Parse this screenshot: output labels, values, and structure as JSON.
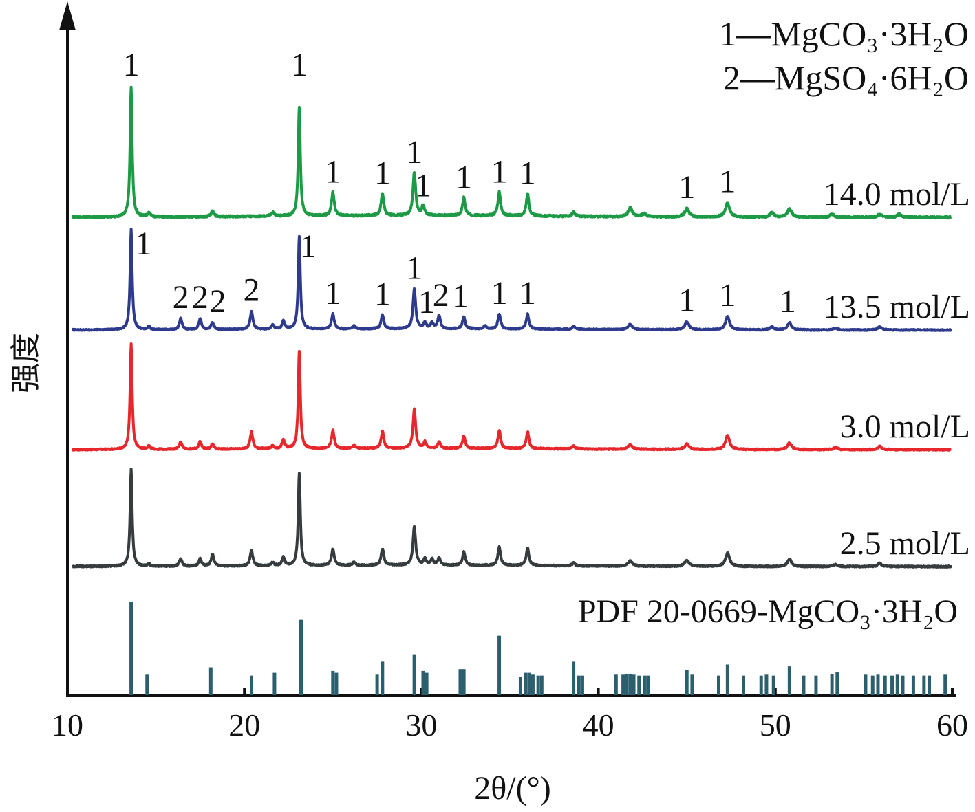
{
  "chart_data": {
    "type": "line",
    "xlabel": "2θ/(°)",
    "ylabel": "强度",
    "xlim": [
      10,
      60
    ],
    "x_ticks": [
      10,
      20,
      30,
      40,
      50,
      60
    ],
    "grid": false,
    "legend": {
      "placement": "top-right",
      "entries": [
        "1—MgCO₃·3H₂O",
        "2—MgSO₄·6H₂O"
      ]
    },
    "series": [
      {
        "name": "14.0 mol/L",
        "color": "#1d9a46",
        "peaks": [
          {
            "x": 13.6,
            "h": 0.93
          },
          {
            "x": 14.6,
            "h": 0.03
          },
          {
            "x": 18.2,
            "h": 0.04
          },
          {
            "x": 21.6,
            "h": 0.03
          },
          {
            "x": 23.1,
            "h": 0.78
          },
          {
            "x": 25.0,
            "h": 0.17
          },
          {
            "x": 27.8,
            "h": 0.16
          },
          {
            "x": 29.6,
            "h": 0.31
          },
          {
            "x": 30.1,
            "h": 0.07
          },
          {
            "x": 32.4,
            "h": 0.13
          },
          {
            "x": 34.4,
            "h": 0.17
          },
          {
            "x": 36.0,
            "h": 0.16
          },
          {
            "x": 38.6,
            "h": 0.03
          },
          {
            "x": 41.8,
            "h": 0.06
          },
          {
            "x": 42.6,
            "h": 0.02
          },
          {
            "x": 45.0,
            "h": 0.06
          },
          {
            "x": 47.3,
            "h": 0.1
          },
          {
            "x": 49.8,
            "h": 0.03
          },
          {
            "x": 50.8,
            "h": 0.06
          },
          {
            "x": 53.2,
            "h": 0.02
          },
          {
            "x": 55.9,
            "h": 0.02
          },
          {
            "x": 57.0,
            "h": 0.02
          }
        ],
        "peak_labels": [
          {
            "x": 13.6,
            "text": "1"
          },
          {
            "x": 23.1,
            "text": "1"
          },
          {
            "x": 25.0,
            "text": "1"
          },
          {
            "x": 27.8,
            "text": "1"
          },
          {
            "x": 29.6,
            "text": "1"
          },
          {
            "x": 30.1,
            "text": "1"
          },
          {
            "x": 32.4,
            "text": "1"
          },
          {
            "x": 34.4,
            "text": "1"
          },
          {
            "x": 36.0,
            "text": "1"
          },
          {
            "x": 45.0,
            "text": "1"
          },
          {
            "x": 47.3,
            "text": "1"
          }
        ]
      },
      {
        "name": "13.5 mol/L",
        "color": "#2e3a8c",
        "peaks": [
          {
            "x": 13.6,
            "h": 1.0
          },
          {
            "x": 14.6,
            "h": 0.03
          },
          {
            "x": 16.4,
            "h": 0.11
          },
          {
            "x": 17.5,
            "h": 0.11
          },
          {
            "x": 18.2,
            "h": 0.07
          },
          {
            "x": 20.4,
            "h": 0.18
          },
          {
            "x": 21.6,
            "h": 0.04
          },
          {
            "x": 22.2,
            "h": 0.08
          },
          {
            "x": 23.1,
            "h": 0.92
          },
          {
            "x": 25.0,
            "h": 0.15
          },
          {
            "x": 26.2,
            "h": 0.03
          },
          {
            "x": 27.8,
            "h": 0.14
          },
          {
            "x": 29.6,
            "h": 0.4
          },
          {
            "x": 30.2,
            "h": 0.06
          },
          {
            "x": 30.6,
            "h": 0.06
          },
          {
            "x": 31.0,
            "h": 0.13
          },
          {
            "x": 32.4,
            "h": 0.12
          },
          {
            "x": 33.6,
            "h": 0.03
          },
          {
            "x": 34.4,
            "h": 0.15
          },
          {
            "x": 36.0,
            "h": 0.15
          },
          {
            "x": 38.6,
            "h": 0.03
          },
          {
            "x": 41.8,
            "h": 0.05
          },
          {
            "x": 45.0,
            "h": 0.08
          },
          {
            "x": 47.3,
            "h": 0.13
          },
          {
            "x": 49.8,
            "h": 0.03
          },
          {
            "x": 50.8,
            "h": 0.07
          },
          {
            "x": 53.4,
            "h": 0.02
          },
          {
            "x": 55.9,
            "h": 0.03
          }
        ],
        "peak_labels": [
          {
            "x": 14.3,
            "text": "1"
          },
          {
            "x": 16.4,
            "text": "2"
          },
          {
            "x": 17.5,
            "text": "2"
          },
          {
            "x": 18.5,
            "text": "2"
          },
          {
            "x": 20.4,
            "text": "2"
          },
          {
            "x": 23.6,
            "text": "1"
          },
          {
            "x": 25.0,
            "text": "1"
          },
          {
            "x": 27.8,
            "text": "1"
          },
          {
            "x": 29.6,
            "text": "1"
          },
          {
            "x": 30.3,
            "text": "1"
          },
          {
            "x": 31.1,
            "text": "2"
          },
          {
            "x": 32.2,
            "text": "1"
          },
          {
            "x": 34.4,
            "text": "1"
          },
          {
            "x": 36.0,
            "text": "1"
          },
          {
            "x": 45.0,
            "text": "1"
          },
          {
            "x": 47.3,
            "text": "1"
          },
          {
            "x": 50.7,
            "text": "1"
          }
        ]
      },
      {
        "name": "3.0 mol/L",
        "color": "#e6282c",
        "peaks": [
          {
            "x": 13.6,
            "h": 1.0
          },
          {
            "x": 14.6,
            "h": 0.03
          },
          {
            "x": 16.4,
            "h": 0.07
          },
          {
            "x": 17.5,
            "h": 0.07
          },
          {
            "x": 18.2,
            "h": 0.05
          },
          {
            "x": 20.4,
            "h": 0.16
          },
          {
            "x": 21.6,
            "h": 0.03
          },
          {
            "x": 22.2,
            "h": 0.08
          },
          {
            "x": 23.1,
            "h": 0.92
          },
          {
            "x": 25.0,
            "h": 0.17
          },
          {
            "x": 26.2,
            "h": 0.03
          },
          {
            "x": 27.8,
            "h": 0.16
          },
          {
            "x": 29.6,
            "h": 0.37
          },
          {
            "x": 30.2,
            "h": 0.06
          },
          {
            "x": 31.0,
            "h": 0.06
          },
          {
            "x": 32.4,
            "h": 0.12
          },
          {
            "x": 34.4,
            "h": 0.17
          },
          {
            "x": 36.0,
            "h": 0.16
          },
          {
            "x": 38.6,
            "h": 0.03
          },
          {
            "x": 41.8,
            "h": 0.04
          },
          {
            "x": 45.0,
            "h": 0.05
          },
          {
            "x": 47.3,
            "h": 0.13
          },
          {
            "x": 50.8,
            "h": 0.06
          },
          {
            "x": 53.4,
            "h": 0.02
          },
          {
            "x": 55.9,
            "h": 0.03
          }
        ],
        "peak_labels": []
      },
      {
        "name": "2.5 mol/L",
        "color": "#363b3d",
        "peaks": [
          {
            "x": 13.6,
            "h": 0.94
          },
          {
            "x": 14.6,
            "h": 0.02
          },
          {
            "x": 16.4,
            "h": 0.07
          },
          {
            "x": 17.5,
            "h": 0.07
          },
          {
            "x": 18.2,
            "h": 0.11
          },
          {
            "x": 20.4,
            "h": 0.15
          },
          {
            "x": 21.6,
            "h": 0.03
          },
          {
            "x": 22.2,
            "h": 0.08
          },
          {
            "x": 23.1,
            "h": 0.9
          },
          {
            "x": 25.0,
            "h": 0.16
          },
          {
            "x": 26.2,
            "h": 0.03
          },
          {
            "x": 27.8,
            "h": 0.16
          },
          {
            "x": 29.6,
            "h": 0.38
          },
          {
            "x": 30.2,
            "h": 0.06
          },
          {
            "x": 30.6,
            "h": 0.06
          },
          {
            "x": 31.0,
            "h": 0.07
          },
          {
            "x": 32.4,
            "h": 0.13
          },
          {
            "x": 34.4,
            "h": 0.18
          },
          {
            "x": 36.0,
            "h": 0.17
          },
          {
            "x": 38.6,
            "h": 0.03
          },
          {
            "x": 41.8,
            "h": 0.05
          },
          {
            "x": 45.0,
            "h": 0.06
          },
          {
            "x": 47.3,
            "h": 0.13
          },
          {
            "x": 50.8,
            "h": 0.07
          },
          {
            "x": 53.4,
            "h": 0.02
          },
          {
            "x": 55.9,
            "h": 0.03
          }
        ],
        "peak_labels": []
      }
    ],
    "reference": {
      "name": "PDF 20-0669-MgCO₃·3H₂O",
      "color": "#2c5f6e",
      "lines": [
        {
          "x": 13.6,
          "h": 1.0
        },
        {
          "x": 14.5,
          "h": 0.22
        },
        {
          "x": 18.1,
          "h": 0.3
        },
        {
          "x": 20.4,
          "h": 0.21
        },
        {
          "x": 21.7,
          "h": 0.24
        },
        {
          "x": 23.2,
          "h": 0.81
        },
        {
          "x": 25.0,
          "h": 0.26
        },
        {
          "x": 25.2,
          "h": 0.24
        },
        {
          "x": 27.5,
          "h": 0.22
        },
        {
          "x": 27.8,
          "h": 0.36
        },
        {
          "x": 29.6,
          "h": 0.44
        },
        {
          "x": 30.1,
          "h": 0.26
        },
        {
          "x": 30.3,
          "h": 0.24
        },
        {
          "x": 32.2,
          "h": 0.28
        },
        {
          "x": 32.4,
          "h": 0.28
        },
        {
          "x": 34.4,
          "h": 0.64
        },
        {
          "x": 35.6,
          "h": 0.2
        },
        {
          "x": 35.9,
          "h": 0.24
        },
        {
          "x": 36.1,
          "h": 0.24
        },
        {
          "x": 36.3,
          "h": 0.22
        },
        {
          "x": 36.6,
          "h": 0.21
        },
        {
          "x": 36.8,
          "h": 0.21
        },
        {
          "x": 38.6,
          "h": 0.36
        },
        {
          "x": 38.9,
          "h": 0.21
        },
        {
          "x": 39.1,
          "h": 0.21
        },
        {
          "x": 41.0,
          "h": 0.22
        },
        {
          "x": 41.4,
          "h": 0.22
        },
        {
          "x": 41.6,
          "h": 0.23
        },
        {
          "x": 41.8,
          "h": 0.23
        },
        {
          "x": 42.0,
          "h": 0.22
        },
        {
          "x": 42.3,
          "h": 0.21
        },
        {
          "x": 42.6,
          "h": 0.21
        },
        {
          "x": 42.8,
          "h": 0.21
        },
        {
          "x": 45.0,
          "h": 0.27
        },
        {
          "x": 45.3,
          "h": 0.22
        },
        {
          "x": 46.8,
          "h": 0.21
        },
        {
          "x": 47.3,
          "h": 0.33
        },
        {
          "x": 48.2,
          "h": 0.21
        },
        {
          "x": 49.2,
          "h": 0.21
        },
        {
          "x": 49.5,
          "h": 0.22
        },
        {
          "x": 49.9,
          "h": 0.21
        },
        {
          "x": 50.8,
          "h": 0.31
        },
        {
          "x": 51.6,
          "h": 0.21
        },
        {
          "x": 52.3,
          "h": 0.21
        },
        {
          "x": 53.2,
          "h": 0.23
        },
        {
          "x": 53.5,
          "h": 0.25
        },
        {
          "x": 55.1,
          "h": 0.22
        },
        {
          "x": 55.5,
          "h": 0.21
        },
        {
          "x": 55.8,
          "h": 0.22
        },
        {
          "x": 56.2,
          "h": 0.21
        },
        {
          "x": 56.6,
          "h": 0.21
        },
        {
          "x": 56.9,
          "h": 0.22
        },
        {
          "x": 57.2,
          "h": 0.21
        },
        {
          "x": 57.8,
          "h": 0.21
        },
        {
          "x": 58.4,
          "h": 0.21
        },
        {
          "x": 58.7,
          "h": 0.21
        },
        {
          "x": 59.6,
          "h": 0.22
        }
      ]
    }
  }
}
